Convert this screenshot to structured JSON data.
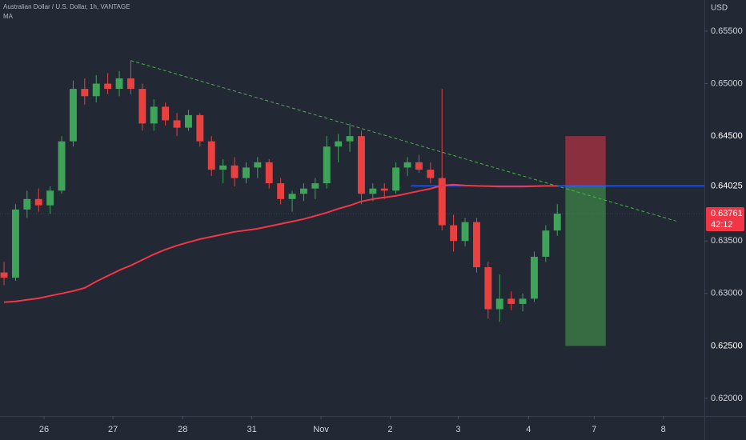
{
  "chart_data": {
    "type": "candlestick",
    "title": "Australian Dollar / U.S. Dollar, 1h, VANTAGE",
    "subtitle": "MA",
    "axis_label": "USD",
    "up_color": "#3fa35a",
    "down_color": "#e8413f",
    "open": [
      0.632,
      0.6315,
      0.638,
      0.639,
      0.6384,
      0.6398,
      0.6445,
      0.6495,
      0.6488,
      0.65,
      0.6495,
      0.6505,
      0.6495,
      0.6462,
      0.6478,
      0.6465,
      0.6458,
      0.647,
      0.6445,
      0.6418,
      0.6422,
      0.641,
      0.642,
      0.6425,
      0.6405,
      0.639,
      0.6395,
      0.64,
      0.6405,
      0.644,
      0.6445,
      0.645,
      0.6395,
      0.64,
      0.6398,
      0.642,
      0.6425,
      0.6418,
      0.641,
      0.6365,
      0.635,
      0.6368,
      0.6325,
      0.6285,
      0.6295,
      0.629,
      0.6295,
      0.6335,
      0.636
    ],
    "high": [
      0.633,
      0.6385,
      0.6398,
      0.64,
      0.6402,
      0.645,
      0.6503,
      0.6505,
      0.6508,
      0.651,
      0.6512,
      0.6522,
      0.65,
      0.6485,
      0.6482,
      0.6472,
      0.6475,
      0.6472,
      0.645,
      0.6428,
      0.643,
      0.6425,
      0.643,
      0.6428,
      0.641,
      0.6398,
      0.6405,
      0.641,
      0.645,
      0.6452,
      0.6462,
      0.6455,
      0.6405,
      0.6405,
      0.6425,
      0.643,
      0.6432,
      0.6425,
      0.6495,
      0.6375,
      0.6372,
      0.6372,
      0.633,
      0.6318,
      0.6302,
      0.63,
      0.634,
      0.6365,
      0.6385
    ],
    "low": [
      0.6308,
      0.6312,
      0.6372,
      0.6378,
      0.6376,
      0.6395,
      0.644,
      0.648,
      0.6482,
      0.649,
      0.6488,
      0.649,
      0.6455,
      0.6455,
      0.646,
      0.645,
      0.6455,
      0.644,
      0.6412,
      0.6405,
      0.6402,
      0.6405,
      0.641,
      0.64,
      0.6385,
      0.6378,
      0.6388,
      0.639,
      0.64,
      0.6425,
      0.6435,
      0.6385,
      0.6388,
      0.639,
      0.6395,
      0.6412,
      0.6415,
      0.6405,
      0.636,
      0.634,
      0.6345,
      0.632,
      0.6276,
      0.6273,
      0.6284,
      0.6283,
      0.6292,
      0.633,
      0.6355
    ],
    "close": [
      0.6315,
      0.638,
      0.639,
      0.6384,
      0.6398,
      0.6445,
      0.6495,
      0.6488,
      0.65,
      0.6495,
      0.6505,
      0.6495,
      0.6462,
      0.6478,
      0.6465,
      0.6458,
      0.647,
      0.6445,
      0.6418,
      0.6422,
      0.641,
      0.642,
      0.6425,
      0.6405,
      0.639,
      0.6395,
      0.64,
      0.6405,
      0.644,
      0.6445,
      0.645,
      0.6395,
      0.64,
      0.6398,
      0.642,
      0.6425,
      0.6418,
      0.641,
      0.6365,
      0.635,
      0.6368,
      0.6325,
      0.6285,
      0.6295,
      0.629,
      0.6295,
      0.6335,
      0.636,
      0.63761
    ],
    "ma": {
      "color": "#f23645",
      "values": [
        0.62916,
        0.62924,
        0.62939,
        0.62954,
        0.62977,
        0.63,
        0.63023,
        0.63053,
        0.63114,
        0.63168,
        0.63221,
        0.63267,
        0.6332,
        0.63373,
        0.63419,
        0.63457,
        0.63488,
        0.63518,
        0.63541,
        0.63564,
        0.63587,
        0.63602,
        0.63617,
        0.6364,
        0.63663,
        0.63686,
        0.63709,
        0.63739,
        0.6377,
        0.63808,
        0.63838,
        0.63877,
        0.63899,
        0.63915,
        0.6393,
        0.63953,
        0.63976,
        0.63998,
        0.64029,
        0.64037,
        0.64029,
        0.64025,
        0.64022,
        0.64018,
        0.64018,
        0.64018,
        0.64022,
        0.64025,
        0.64025
      ]
    },
    "trendline": {
      "color": "#4caf50",
      "x": [
        11,
        58.3
      ],
      "y": [
        0.6522,
        0.6369
      ]
    },
    "position": {
      "entry": {
        "value": 0.64025,
        "label": "0.64025",
        "color": "#2962ff"
      },
      "stop": {
        "value": 0.645,
        "label": "0.64500",
        "color": "#f23645"
      },
      "target": {
        "value": 0.625,
        "label": "0.62500",
        "color": "#4caf50"
      },
      "line_start": 35.3,
      "x": [
        48.7,
        52.2
      ]
    },
    "last_price": {
      "value": 0.63761,
      "label": "0.63761",
      "countdown": "42:12",
      "color": "#f23645"
    },
    "xlim": [
      -0.35,
      60.76
    ],
    "ylim": [
      0.61832,
      0.65797
    ],
    "xticks": [
      {
        "value": 3.47,
        "label": "26"
      },
      {
        "value": 9.45,
        "label": "27"
      },
      {
        "value": 15.5,
        "label": "28"
      },
      {
        "value": 21.5,
        "label": "31"
      },
      {
        "value": 27.5,
        "label": "Nov"
      },
      {
        "value": 33.5,
        "label": "2"
      },
      {
        "value": 39.4,
        "label": "3"
      },
      {
        "value": 45.5,
        "label": "4"
      },
      {
        "value": 51.2,
        "label": "7"
      },
      {
        "value": 57.2,
        "label": "8"
      }
    ],
    "yticks": [
      {
        "value": 0.655,
        "label": "0.65500"
      },
      {
        "value": 0.65,
        "label": "0.65000"
      },
      {
        "value": 0.635,
        "label": "0.63500"
      },
      {
        "value": 0.63,
        "label": "0.63000"
      },
      {
        "value": 0.62,
        "label": "0.62000"
      }
    ],
    "grid": false
  }
}
